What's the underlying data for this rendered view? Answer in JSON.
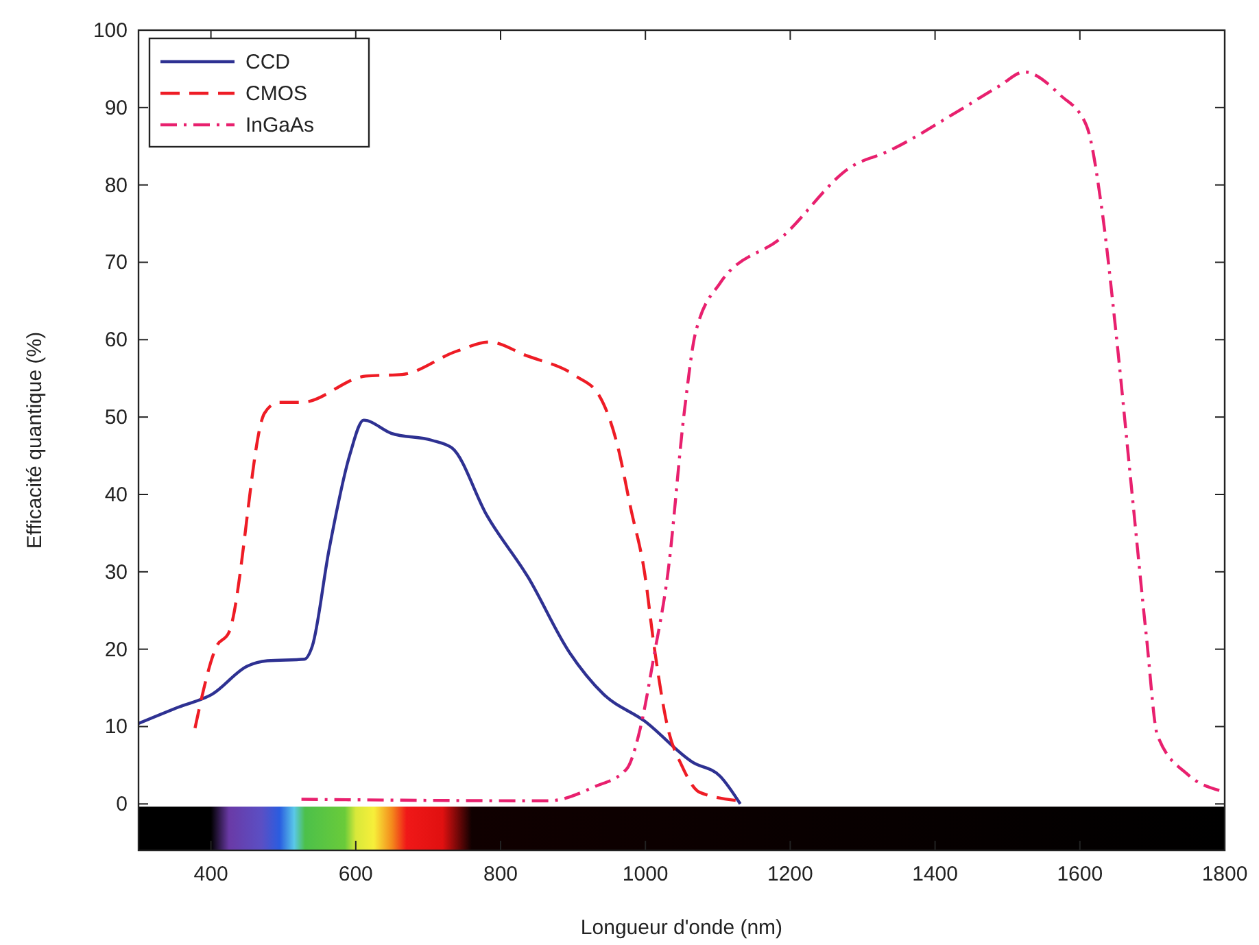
{
  "chart_data": {
    "type": "line",
    "xlabel": "Longueur d'onde (nm)",
    "ylabel": "Efficacité quantique (%)",
    "xlim": [
      300,
      1800
    ],
    "xticks": [
      400,
      600,
      800,
      1000,
      1200,
      1400,
      1600,
      1800
    ],
    "ylim": [
      -6,
      100
    ],
    "yticks": [
      0,
      10,
      20,
      30,
      40,
      50,
      60,
      70,
      80,
      90,
      100
    ],
    "grid": false,
    "legend": "top left",
    "series": [
      {
        "name": "CCD",
        "color": "#2e3192",
        "line_style": "solid",
        "x": [
          300,
          355,
          402,
          450,
          478,
          529,
          540,
          563,
          592,
          611,
          649,
          705,
          733,
          781,
          838,
          895,
          942,
          999,
          1065,
          1103,
          1131
        ],
        "values": [
          10.4,
          12.5,
          14.2,
          17.8,
          18.5,
          18.7,
          20.4,
          32.8,
          45.2,
          49.6,
          47.9,
          47,
          46,
          37.3,
          29.3,
          19.6,
          14.2,
          10.7,
          5.4,
          3.6,
          0
        ]
      },
      {
        "name": "CMOS",
        "color": "#ee1c25",
        "line_style": "dashed",
        "x": [
          378,
          408,
          425,
          474,
          493,
          525,
          614,
          664,
          739,
          785,
          834,
          904,
          936,
          961,
          980,
          999,
          1012,
          1031,
          1050,
          1075,
          1131
        ],
        "values": [
          9.8,
          20.4,
          22.2,
          50.5,
          51.9,
          51.9,
          55.3,
          55.5,
          58.5,
          59.7,
          58,
          55.3,
          52.8,
          46.5,
          38.1,
          29.8,
          20.4,
          9.8,
          5,
          1.5,
          0.4
        ]
      },
      {
        "name": "InGaAs",
        "color": "#e8206e",
        "line_style": "dashdot",
        "x": [
          525,
          866,
          929,
          974,
          993,
          1012,
          1031,
          1054,
          1069,
          1103,
          1188,
          1285,
          1334,
          1433,
          1489,
          1523,
          1573,
          1609,
          1630,
          1650,
          1671,
          1692,
          1707,
          1749,
          1794
        ],
        "values": [
          0.6,
          0.4,
          2.2,
          4.5,
          9.8,
          19.2,
          29.8,
          50.9,
          60.8,
          67.3,
          73.2,
          82.4,
          84.3,
          89.6,
          92.8,
          94.6,
          91.6,
          87.7,
          77.1,
          60.8,
          41.1,
          21.5,
          8.9,
          3.8,
          1.7
        ]
      }
    ]
  }
}
